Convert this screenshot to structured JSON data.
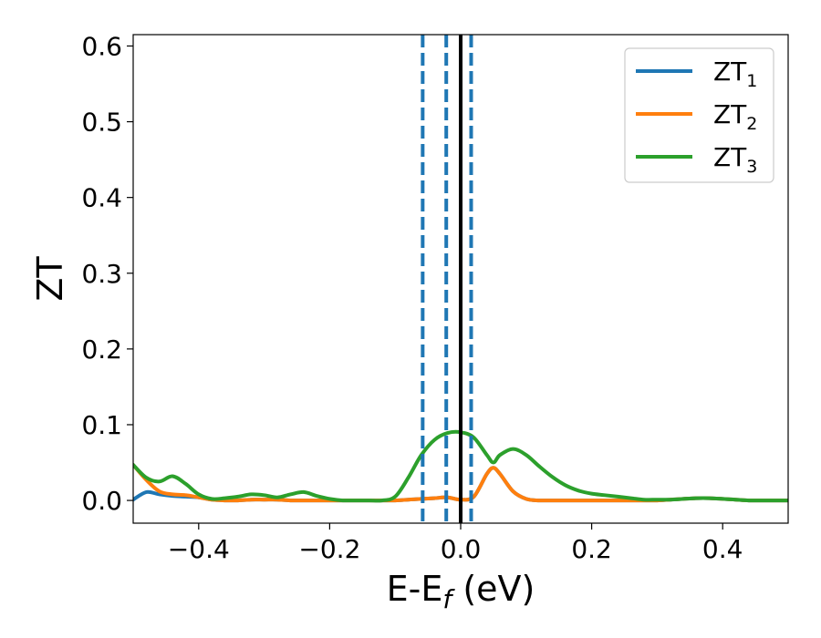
{
  "chart_data": {
    "type": "line",
    "xlabel": "E-E",
    "xlabel_sub": "f",
    "xlabel_unit": " (eV)",
    "ylabel": "ZT",
    "xlim": [
      -0.5,
      0.5
    ],
    "ylim": [
      -0.03,
      0.615
    ],
    "xticks": [
      {
        "v": -0.4,
        "label": "−0.4"
      },
      {
        "v": -0.2,
        "label": "−0.2"
      },
      {
        "v": 0.0,
        "label": "0.0"
      },
      {
        "v": 0.2,
        "label": "0.2"
      },
      {
        "v": 0.4,
        "label": "0.4"
      }
    ],
    "yticks": [
      {
        "v": 0.0,
        "label": "0.0"
      },
      {
        "v": 0.1,
        "label": "0.1"
      },
      {
        "v": 0.2,
        "label": "0.2"
      },
      {
        "v": 0.3,
        "label": "0.3"
      },
      {
        "v": 0.4,
        "label": "0.4"
      },
      {
        "v": 0.5,
        "label": "0.5"
      },
      {
        "v": 0.6,
        "label": "0.6"
      }
    ],
    "grid": false,
    "legend_position": "top-right",
    "x": [
      -0.5,
      -0.48,
      -0.46,
      -0.44,
      -0.42,
      -0.4,
      -0.38,
      -0.36,
      -0.34,
      -0.32,
      -0.3,
      -0.28,
      -0.26,
      -0.24,
      -0.22,
      -0.2,
      -0.18,
      -0.16,
      -0.14,
      -0.12,
      -0.1,
      -0.08,
      -0.06,
      -0.04,
      -0.02,
      0.0,
      0.02,
      0.04,
      0.05,
      0.06,
      0.08,
      0.1,
      0.12,
      0.14,
      0.16,
      0.18,
      0.2,
      0.22,
      0.24,
      0.26,
      0.28,
      0.3,
      0.32,
      0.34,
      0.36,
      0.38,
      0.4,
      0.42,
      0.44,
      0.46,
      0.48,
      0.5
    ],
    "series": [
      {
        "name": "ZT",
        "name_sub": "1",
        "color": "#1f77b4",
        "values": [
          0.001,
          0.011,
          0.008,
          0.006,
          0.005,
          0.004,
          0.001,
          0.0,
          0.0,
          0.001,
          0.001,
          0.001,
          0.0,
          0.0,
          0.0,
          0.0,
          0.0,
          0.0,
          0.0,
          0.0,
          0.0,
          0.001,
          0.002,
          0.003,
          0.004,
          0.001,
          0.005,
          0.035,
          0.043,
          0.035,
          0.012,
          0.002,
          0.0,
          0.0,
          0.0,
          0.0,
          0.0,
          0.0,
          0.0,
          0.0,
          0.0,
          0.0,
          0.001,
          0.002,
          0.003,
          0.003,
          0.002,
          0.001,
          0.0,
          0.0,
          0.0,
          0.0
        ]
      },
      {
        "name": "ZT",
        "name_sub": "2",
        "color": "#ff7f0e",
        "values": [
          0.047,
          0.027,
          0.012,
          0.008,
          0.007,
          0.004,
          0.001,
          0.0,
          0.0,
          0.001,
          0.001,
          0.001,
          0.0,
          0.0,
          0.0,
          0.0,
          0.0,
          0.0,
          0.0,
          0.0,
          0.0,
          0.001,
          0.002,
          0.003,
          0.004,
          0.001,
          0.005,
          0.035,
          0.043,
          0.035,
          0.012,
          0.002,
          0.0,
          0.0,
          0.0,
          0.0,
          0.0,
          0.0,
          0.0,
          0.0,
          0.0,
          0.0,
          0.001,
          0.002,
          0.003,
          0.003,
          0.002,
          0.001,
          0.0,
          0.0,
          0.0,
          0.0
        ]
      },
      {
        "name": "ZT",
        "name_sub": "3",
        "color": "#2ca02c",
        "values": [
          0.047,
          0.03,
          0.025,
          0.032,
          0.022,
          0.008,
          0.002,
          0.003,
          0.005,
          0.008,
          0.007,
          0.004,
          0.008,
          0.011,
          0.006,
          0.002,
          0.0,
          0.0,
          0.0,
          0.0,
          0.005,
          0.03,
          0.06,
          0.08,
          0.089,
          0.09,
          0.083,
          0.06,
          0.05,
          0.06,
          0.068,
          0.06,
          0.045,
          0.031,
          0.02,
          0.013,
          0.009,
          0.007,
          0.005,
          0.003,
          0.001,
          0.001,
          0.001,
          0.002,
          0.003,
          0.003,
          0.002,
          0.001,
          0.0,
          0.0,
          0.0,
          0.0
        ]
      }
    ],
    "vlines": [
      {
        "x": -0.058,
        "color": "#1f77b4",
        "style": "dashed"
      },
      {
        "x": -0.022,
        "color": "#1f77b4",
        "style": "dashed"
      },
      {
        "x": 0.0,
        "color": "#000000",
        "style": "solid"
      },
      {
        "x": 0.016,
        "color": "#1f77b4",
        "style": "dashed"
      }
    ]
  }
}
